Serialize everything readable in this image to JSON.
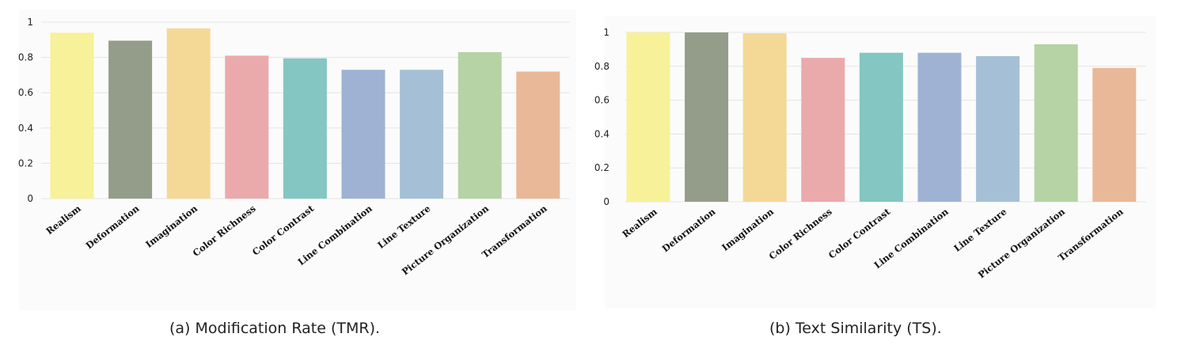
{
  "chart_data": [
    {
      "type": "bar",
      "caption": "(a) Modification Rate (TMR).",
      "categories": [
        "Realism",
        "Deformation",
        "Imagination",
        "Color Richness",
        "Color Contrast",
        "Line Combination",
        "Line Texture",
        "Picture Organization",
        "Transformation"
      ],
      "values": [
        0.94,
        0.895,
        0.965,
        0.81,
        0.795,
        0.73,
        0.73,
        0.83,
        0.72
      ],
      "ylim": [
        0,
        1
      ],
      "yticks": [
        0,
        0.2,
        0.4,
        0.6,
        0.8,
        1
      ],
      "ytick_labels": [
        "0",
        "0.2",
        "0.4",
        "0.6",
        "0.8",
        "1"
      ],
      "grid": true,
      "colors": [
        "#f7f19a",
        "#949d89",
        "#f4d896",
        "#eaaaab",
        "#83c6c2",
        "#9fb2d4",
        "#a5c0d6",
        "#b5d3a4",
        "#e9b898"
      ]
    },
    {
      "type": "bar",
      "caption": "(b) Text Similarity (TS).",
      "categories": [
        "Realism",
        "Deformation",
        "Imagination",
        "Color Richness",
        "Color Contrast",
        "Line Combination",
        "Line Texture",
        "Picture Organization",
        "Transformation"
      ],
      "values": [
        1.0,
        1.0,
        0.995,
        0.85,
        0.88,
        0.88,
        0.86,
        0.93,
        0.79
      ],
      "ylim": [
        0,
        1
      ],
      "yticks": [
        0,
        0.2,
        0.4,
        0.6,
        0.8,
        1
      ],
      "ytick_labels": [
        "0",
        "0.2",
        "0.4",
        "0.6",
        "0.8",
        "1"
      ],
      "grid": true,
      "colors": [
        "#f7f19a",
        "#949d89",
        "#f4d896",
        "#eaaaab",
        "#83c6c2",
        "#9fb2d4",
        "#a5c0d6",
        "#b5d3a4",
        "#e9b898"
      ]
    }
  ]
}
